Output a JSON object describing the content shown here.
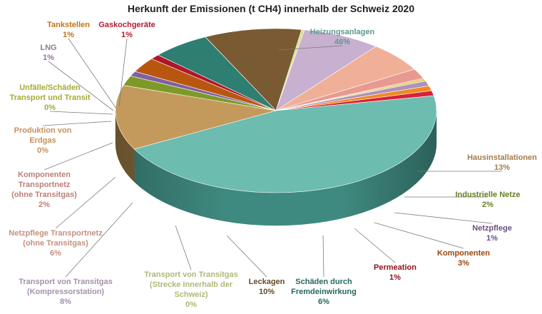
{
  "chart_data": {
    "type": "pie",
    "style": "3d-pie",
    "title": "Herkunft der Emissionen (t CH4) innerhalb der Schweiz 2020",
    "unit": "%",
    "slices": [
      {
        "lines": [
          "Heizungsanlagen"
        ],
        "pct_label": "46%",
        "value": 46,
        "color": "#6cbcb0",
        "side_color": "#3f8a80"
      },
      {
        "lines": [
          "Hausinstallationen"
        ],
        "pct_label": "13%",
        "value": 13,
        "color": "#c49a5c",
        "side_color": "#8a6a3c"
      },
      {
        "lines": [
          "Industrielle Netze"
        ],
        "pct_label": "2%",
        "value": 2,
        "color": "#7d9a28",
        "side_color": "#55691a"
      },
      {
        "lines": [
          "Netzpflege"
        ],
        "pct_label": "1%",
        "value": 1,
        "color": "#8060a0",
        "side_color": "#5a4070"
      },
      {
        "lines": [
          "Komponenten"
        ],
        "pct_label": "3%",
        "value": 3,
        "color": "#b85610",
        "side_color": "#803a0a"
      },
      {
        "lines": [
          "Permeation"
        ],
        "pct_label": "1%",
        "value": 1,
        "color": "#b01628",
        "side_color": "#780e1a"
      },
      {
        "lines": [
          "Schäden durch",
          "Fremdeinwirkung"
        ],
        "pct_label": "6%",
        "value": 6,
        "color": "#2e7e72",
        "side_color": "#1f574f"
      },
      {
        "lines": [
          "Leckagen"
        ],
        "pct_label": "10%",
        "value": 10,
        "color": "#7a5a32",
        "side_color": "#523c20"
      },
      {
        "lines": [
          "Transport von Transitgas",
          "(Strecke innerhalb der",
          "Schweiz)"
        ],
        "pct_label": "0%",
        "value": 0.3,
        "color": "#d8e090",
        "side_color": "#a4aa60"
      },
      {
        "lines": [
          "Transport von Transitgas",
          "(Kompressorstation)"
        ],
        "pct_label": "8%",
        "value": 8,
        "color": "#c8b0d0",
        "side_color": "#9a84a2"
      },
      {
        "lines": [
          "Netzpflege Transportnetz",
          "(ohne Transitgas)"
        ],
        "pct_label": "6%",
        "value": 6,
        "color": "#f0b098",
        "side_color": "#c08070"
      },
      {
        "lines": [
          "Komponenten",
          "Transportnetz",
          "(ohne Transitgas)"
        ],
        "pct_label": "2%",
        "value": 2,
        "color": "#e89a90",
        "side_color": "#b4716a"
      },
      {
        "lines": [
          "Produktion von",
          "Erdgas"
        ],
        "pct_label": "0%",
        "value": 0.3,
        "color": "#f2b070",
        "side_color": "#c0864e"
      },
      {
        "lines": [
          "Unfälle/Schäden",
          "Transport und Transit"
        ],
        "pct_label": "0%",
        "value": 0.3,
        "color": "#c8d040",
        "side_color": "#9aa030"
      },
      {
        "lines": [
          "LNG"
        ],
        "pct_label": "1%",
        "value": 1,
        "color": "#b090c0",
        "side_color": "#846a92"
      },
      {
        "lines": [
          "Tankstellen"
        ],
        "pct_label": "1%",
        "value": 1,
        "color": "#f08a20",
        "side_color": "#b46614"
      },
      {
        "lines": [
          "Gaskochgeräte"
        ],
        "pct_label": "1%",
        "value": 1,
        "color": "#d8223a",
        "side_color": "#a0182a"
      }
    ]
  }
}
